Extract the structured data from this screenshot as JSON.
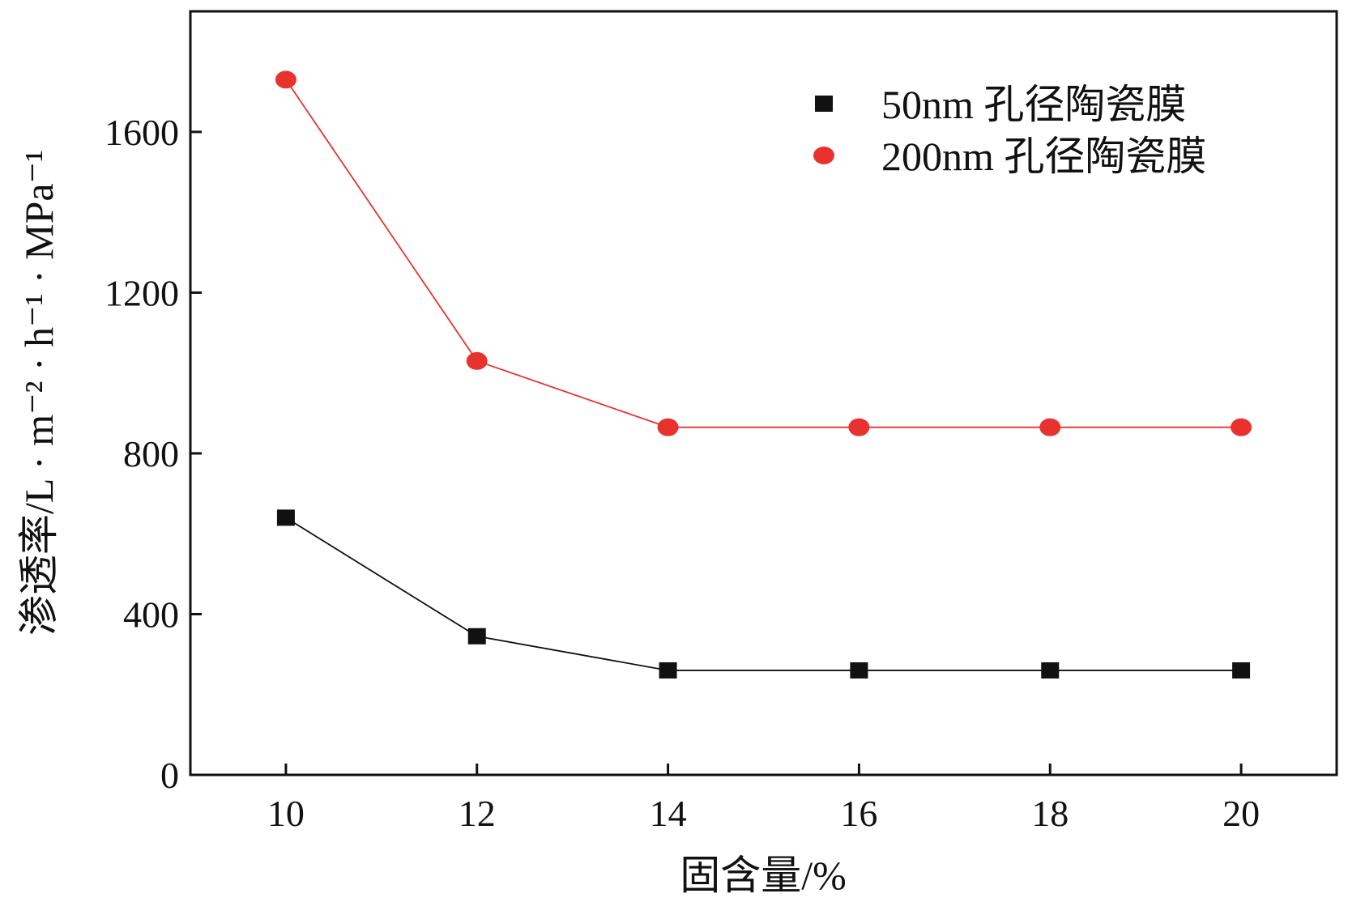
{
  "chart_data": {
    "type": "line",
    "x": [
      10,
      12,
      14,
      16,
      18,
      20
    ],
    "xlabel": "固含量/%",
    "ylabel": "渗透率/L · m⁻² · h⁻¹ · MPa⁻¹",
    "xlim": [
      9,
      21
    ],
    "ylim": [
      0,
      1900
    ],
    "xticks": [
      "10",
      "12",
      "14",
      "16",
      "18",
      "20"
    ],
    "yticks": [
      "0",
      "400",
      "800",
      "1200",
      "1600"
    ],
    "grid": false,
    "legend_position": "top-right",
    "series": [
      {
        "name": "50nm 孔径陶瓷膜",
        "marker": "square",
        "color": "#111111",
        "values": [
          640,
          345,
          260,
          260,
          260,
          260
        ]
      },
      {
        "name": "200nm 孔径陶瓷膜",
        "marker": "circle",
        "color": "#e8322d",
        "values": [
          1730,
          1030,
          865,
          865,
          865,
          865
        ]
      }
    ]
  }
}
